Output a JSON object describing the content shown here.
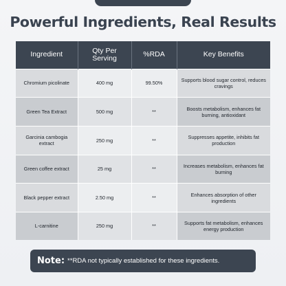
{
  "title": "Powerful Ingredients, Real Results",
  "table": {
    "headers": [
      "Ingredient",
      "Qty Per Serving",
      "%RDA",
      "Key Benefits"
    ],
    "rows": [
      {
        "ingredient": "Chromium picolinate",
        "qty": "400 mg",
        "rda": "99.50%",
        "benefits": "Supports blood sugar control, reduces cravings"
      },
      {
        "ingredient": "Green Tea Extract",
        "qty": "500 mg",
        "rda": "**",
        "benefits": "Boosts metabolism, enhances fat burning, antioxidant"
      },
      {
        "ingredient": "Garcinia cambogia extract",
        "qty": "250 mg",
        "rda": "**",
        "benefits": "Suppresses appetite, inhibits fat production"
      },
      {
        "ingredient": "Green coffee extract",
        "qty": "25 mg",
        "rda": "**",
        "benefits": "Increases metabolism, enhances fat burning"
      },
      {
        "ingredient": "Black pepper extract",
        "qty": "2.50 mg",
        "rda": "**",
        "benefits": "Enhances absorption of other ingredients"
      },
      {
        "ingredient": "L-carnitine",
        "qty": "250 mg",
        "rda": "**",
        "benefits": "Supports fat metabolism, enhances energy production"
      }
    ]
  },
  "note": {
    "label": "Note:",
    "text": "**RDA not typically established for these ingredients."
  },
  "colors": {
    "dark": "#3c4551",
    "row_light": "#d9dbde",
    "row_dark": "#c9ccd0"
  }
}
